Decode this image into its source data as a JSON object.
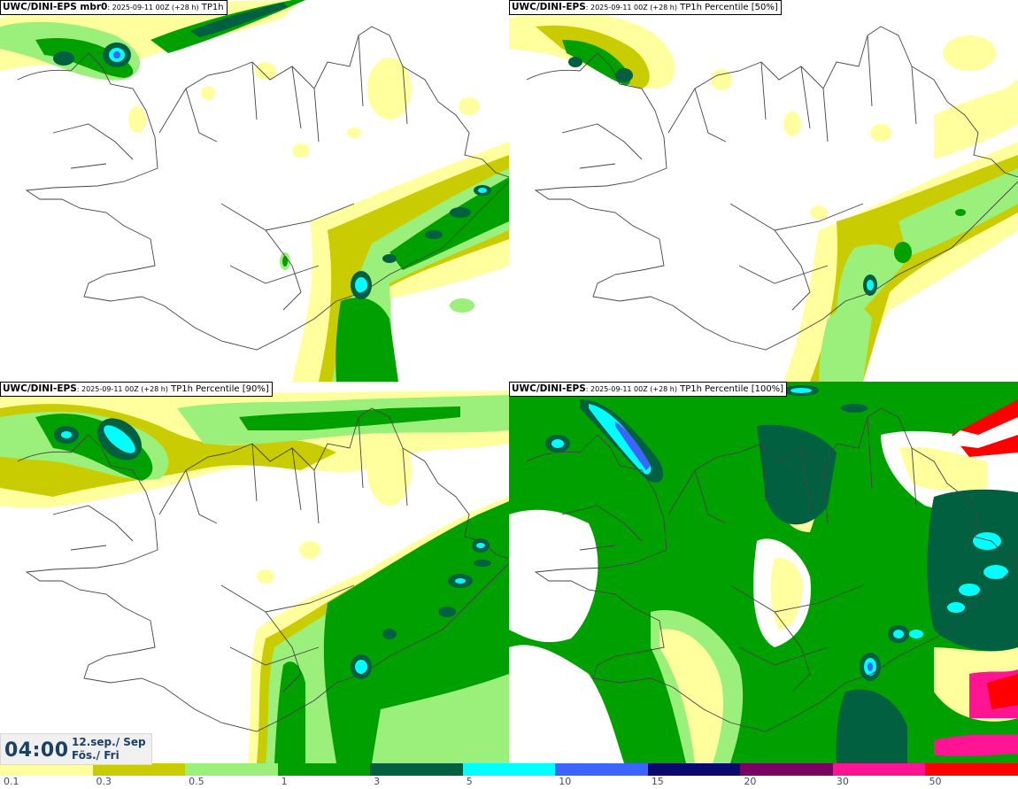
{
  "panels": [
    {
      "model": "UWC/DINI-EPS",
      "suffix": " mbr0",
      "run": ": 2025-09-11 00Z (+28 h)",
      "field": " TP1h"
    },
    {
      "model": "UWC/DINI-EPS",
      "suffix": "",
      "run": ": 2025-09-11 00Z (+28 h)",
      "field": " TP1h Percentile [50%]"
    },
    {
      "model": "UWC/DINI-EPS",
      "suffix": "",
      "run": ": 2025-09-11 00Z (+28 h)",
      "field": " TP1h Percentile [90%]"
    },
    {
      "model": "UWC/DINI-EPS",
      "suffix": "",
      "run": ": 2025-09-11 00Z (+28 h)",
      "field": " TP1h Percentile [100%]"
    }
  ],
  "time": {
    "clock": "04:00",
    "date_line1": "12.sep./ Sep",
    "date_line2": "Fös./ Fri"
  },
  "colorbar": {
    "labels": [
      "0.1",
      "0.3",
      "0.5",
      "1",
      "3",
      "5",
      "10",
      "15",
      "20",
      "30",
      "50"
    ],
    "colors": [
      "#ffff9e",
      "#c8cc00",
      "#9af07a",
      "#00a000",
      "#006040",
      "#00ffff",
      "#3c64ff",
      "#0a0a6e",
      "#7a0064",
      "#ff1493",
      "#ff0000"
    ]
  },
  "map_colors": {
    "light_yellow": "#ffff9e",
    "olive": "#c8cc00",
    "light_green": "#9af07a",
    "green": "#00a000",
    "dark_green": "#006040",
    "cyan": "#00ffff",
    "blue": "#3c64ff",
    "coast": "#444444"
  }
}
